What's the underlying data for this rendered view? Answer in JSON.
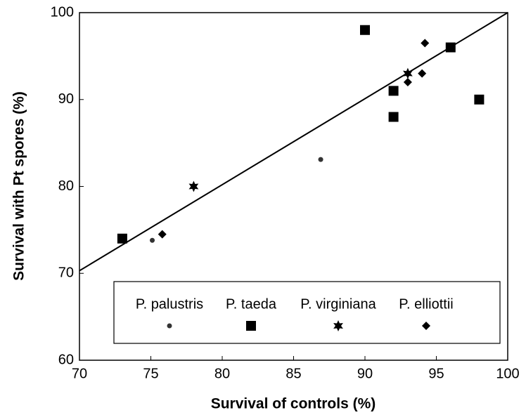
{
  "chart_data": {
    "type": "scatter",
    "xlabel": "Survival of controls (%)",
    "ylabel": "Survival with Pt spores (%)",
    "xlim": [
      70,
      100
    ],
    "xticks": [
      70,
      75,
      80,
      85,
      90,
      95,
      100
    ],
    "ylim": [
      60,
      100
    ],
    "yticks": [
      60,
      70,
      80,
      90,
      100
    ],
    "series": [
      {
        "name": "P. palustris",
        "marker": "circle",
        "color": "#333333",
        "x": [
          75.1,
          86.9
        ],
        "values": [
          73.8,
          83.1
        ]
      },
      {
        "name": "P. taeda",
        "marker": "square",
        "color": "#000000",
        "x": [
          73,
          90,
          92,
          92,
          96,
          98
        ],
        "values": [
          74,
          98,
          91,
          88,
          96,
          90
        ]
      },
      {
        "name": "P. virginiana",
        "marker": "star",
        "color": "#000000",
        "x": [
          78,
          93
        ],
        "values": [
          80,
          93
        ]
      },
      {
        "name": "P. elliottii",
        "marker": "diamond",
        "color": "#000000",
        "x": [
          75.8,
          93,
          94,
          94.2
        ],
        "values": [
          74.5,
          92,
          93,
          96.5
        ]
      }
    ],
    "fit_line": {
      "x": [
        70,
        100
      ],
      "values": [
        70.3,
        100
      ]
    },
    "legend": "bottom"
  }
}
